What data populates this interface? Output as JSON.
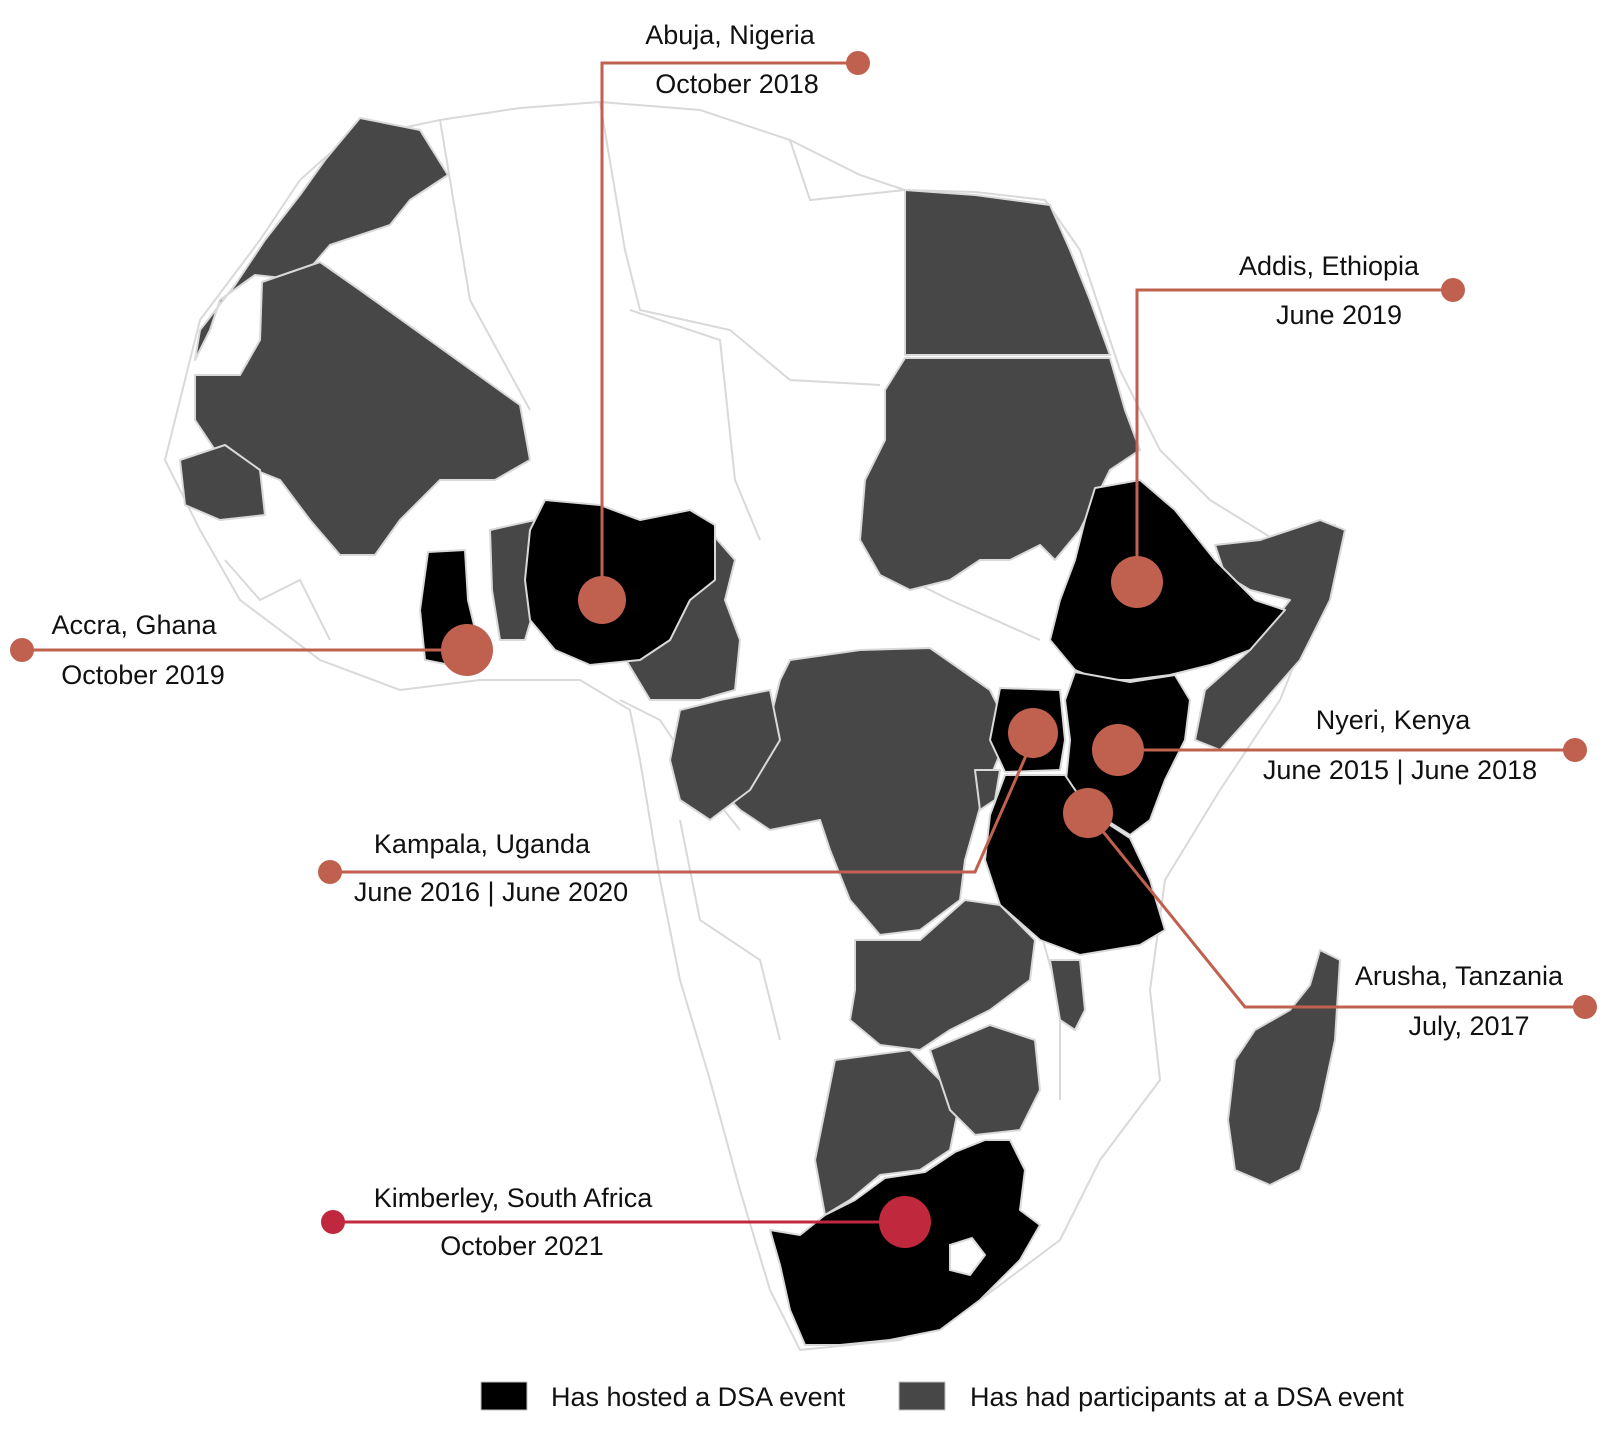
{
  "colors": {
    "hosted": "#000000",
    "participants": "#474747",
    "none": "#ffffff",
    "border": "#d9d9d9",
    "marker": "#c0604f",
    "marker_highlight": "#c0283e"
  },
  "events": [
    {
      "id": "abuja",
      "city": "Abuja, Nigeria",
      "dates": "October 2018",
      "color_key": "marker"
    },
    {
      "id": "addis",
      "city": "Addis, Ethiopia",
      "dates": "June 2019",
      "color_key": "marker"
    },
    {
      "id": "accra",
      "city": "Accra, Ghana",
      "dates": "October 2019",
      "color_key": "marker"
    },
    {
      "id": "nyeri",
      "city": "Nyeri, Kenya",
      "dates": "June 2015 | June 2018",
      "color_key": "marker"
    },
    {
      "id": "kampala",
      "city": "Kampala, Uganda",
      "dates": "June 2016 | June 2020",
      "color_key": "marker"
    },
    {
      "id": "arusha",
      "city": "Arusha, Tanzania",
      "dates": "July, 2017",
      "color_key": "marker"
    },
    {
      "id": "kimberley",
      "city": "Kimberley, South Africa",
      "dates": "October 2021",
      "color_key": "marker_highlight"
    }
  ],
  "legend": {
    "hosted_label": "Has hosted a DSA event",
    "participants_label": "Has had participants at a DSA event"
  }
}
